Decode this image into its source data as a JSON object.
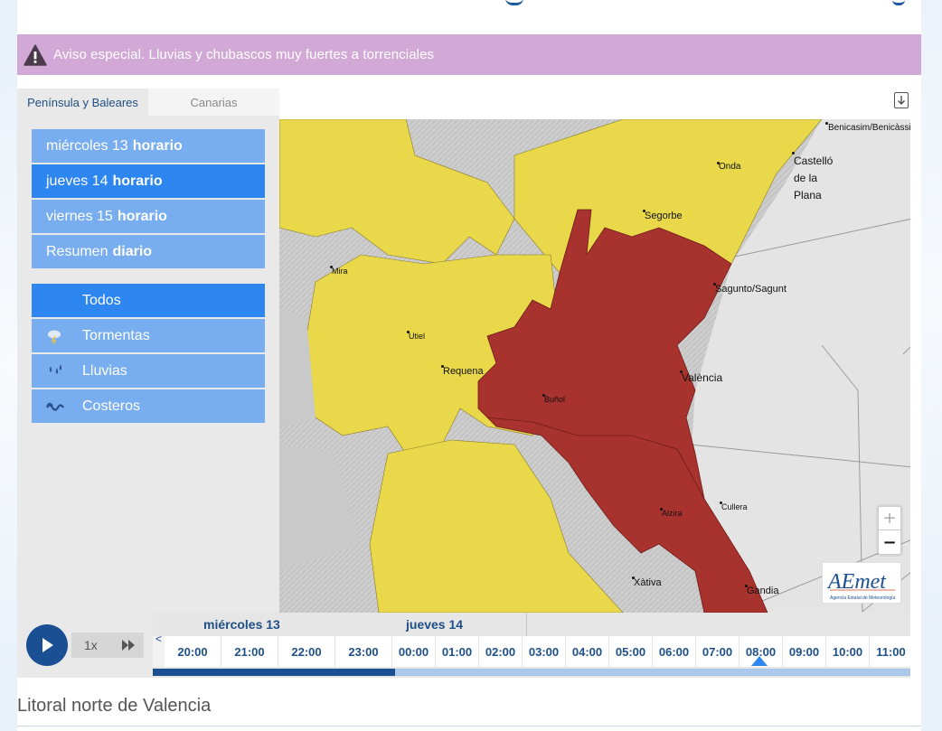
{
  "warning": {
    "text": "Aviso especial. Lluvias y chubascos muy fuertes a torrenciales",
    "color": "#d2a9d6"
  },
  "tabs": [
    {
      "label": "Península y Baleares",
      "active": true
    },
    {
      "label": "Canarias",
      "active": false
    }
  ],
  "days": [
    {
      "day": "miércoles 13",
      "suffix": "horario",
      "active": false
    },
    {
      "day": "jueves 14",
      "suffix": "horario",
      "active": true
    },
    {
      "day": "viernes 15",
      "suffix": "horario",
      "active": false
    },
    {
      "day": "Resumen",
      "suffix": "diario",
      "active": false
    }
  ],
  "categories": [
    {
      "label": "Todos",
      "icon": "none",
      "active": true
    },
    {
      "label": "Tormentas",
      "icon": "storm-icon",
      "active": false
    },
    {
      "label": "Lluvias",
      "icon": "rain-icon",
      "active": false
    },
    {
      "label": "Costeros",
      "icon": "waves-icon",
      "active": false
    }
  ],
  "map": {
    "cities": [
      "Benicasim/Benicàssim",
      "Castelló de la Plana",
      "Onda",
      "Segorbe",
      "Mira",
      "Sagunto/Sagunt",
      "Utiel",
      "Requena",
      "València",
      "Buñol",
      "Alzira",
      "Cullera",
      "Xàtiva",
      "Gandia"
    ],
    "colors": {
      "yellow": "#e8d84a",
      "red": "#a7322e",
      "terrain": "#cfcfcf",
      "sea": "#e4e4e4"
    },
    "zoom_in": "+",
    "zoom_out": "−",
    "logo_text": "AEmet",
    "logo_sub": "Agencia Estatal de Meteorología"
  },
  "timeline": {
    "speed": "1x",
    "day_labels": [
      "miércoles 13",
      "jueves 14"
    ],
    "prev_arrow": "<",
    "next_arrow": ">",
    "hours": [
      "20:00",
      "21:00",
      "22:00",
      "23:00",
      "00:00",
      "01:00",
      "02:00",
      "03:00",
      "04:00",
      "05:00",
      "06:00",
      "07:00",
      "08:00",
      "09:00",
      "10:00",
      "11:00"
    ],
    "selected_hour": "08:00",
    "progress": 0.32
  },
  "zone_title": "Litoral norte de Valencia"
}
